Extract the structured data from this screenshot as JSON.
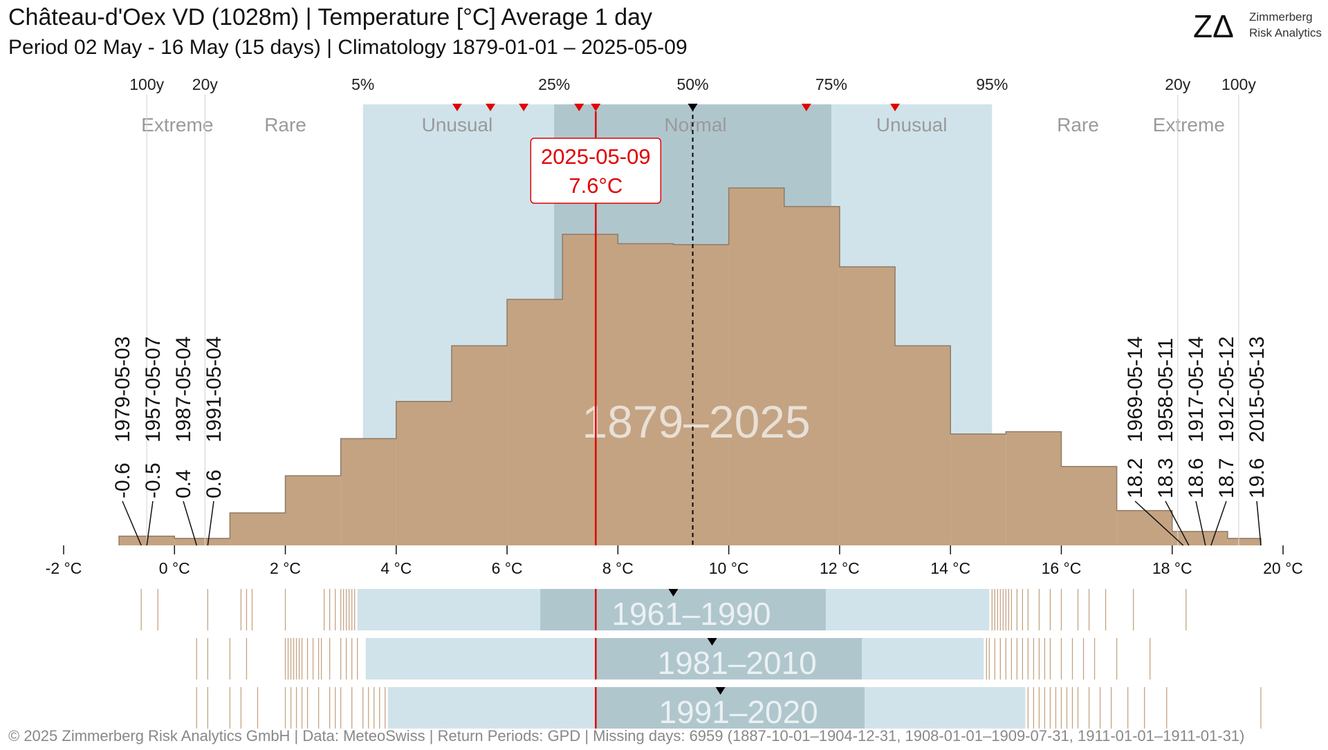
{
  "header": {
    "title": "Château-d'Oex  VD (1028m) | Temperature [°C] Average 1 day",
    "subtitle": "Period 02 May - 16 May (15 days) | Climatology 1879-01-01 – 2025-05-09"
  },
  "logo": {
    "mark": "ZΔ",
    "line1": "Zimmerberg",
    "line2": "Risk Analytics"
  },
  "footer": "©  2025 Zimmerberg Risk Analytics GmbH | Data: MeteoSwiss | Return Periods: GPD | Missing days: 6959 (1887-10-01–1904-12-31, 1908-01-01–1909-07-31, 1911-01-01–1911-01-31)",
  "colors": {
    "histogram": "#c4a382",
    "histogram_edge": "#8f7a64",
    "band_outer": "#d0e3ea",
    "band_inner": "#b0c6cd",
    "highlight": "#e00000",
    "median": "#000000",
    "category_text": "#9a9a9a",
    "period_text": "#e8e0d6"
  },
  "chart_data": {
    "type": "histogram",
    "xlabel": "",
    "ylabel": "",
    "xlim": [
      -2,
      20
    ],
    "x_tick_labels": [
      "-2 °C",
      "0 °C",
      "2 °C",
      "4 °C",
      "6 °C",
      "8 °C",
      "10 °C",
      "12 °C",
      "14 °C",
      "16 °C",
      "18 °C",
      "20 °C"
    ],
    "x_ticks": [
      -2,
      0,
      2,
      4,
      6,
      8,
      10,
      12,
      14,
      16,
      18,
      20
    ],
    "bins": [
      {
        "from": -1,
        "to": 0,
        "count": 2
      },
      {
        "from": 0,
        "to": 1,
        "count": 1.5
      },
      {
        "from": 1,
        "to": 2,
        "count": 7
      },
      {
        "from": 2,
        "to": 3,
        "count": 15
      },
      {
        "from": 3,
        "to": 4,
        "count": 23
      },
      {
        "from": 4,
        "to": 5,
        "count": 31
      },
      {
        "from": 5,
        "to": 6,
        "count": 43
      },
      {
        "from": 6,
        "to": 7,
        "count": 53
      },
      {
        "from": 7,
        "to": 8,
        "count": 67
      },
      {
        "from": 8,
        "to": 9,
        "count": 65
      },
      {
        "from": 9,
        "to": 10,
        "count": 64.8
      },
      {
        "from": 10,
        "to": 11,
        "count": 77
      },
      {
        "from": 11,
        "to": 12,
        "count": 73
      },
      {
        "from": 12,
        "to": 13,
        "count": 60
      },
      {
        "from": 13,
        "to": 14,
        "count": 43
      },
      {
        "from": 14,
        "to": 15,
        "count": 24
      },
      {
        "from": 15,
        "to": 16,
        "count": 24.5
      },
      {
        "from": 16,
        "to": 17,
        "count": 17
      },
      {
        "from": 17,
        "to": 18,
        "count": 7.5
      },
      {
        "from": 18,
        "to": 19,
        "count": 3
      },
      {
        "from": 19,
        "to": 19.6,
        "count": 1.5
      }
    ],
    "ylim": [
      0,
      95
    ],
    "percentiles": [
      {
        "label": "5%",
        "value": 3.4
      },
      {
        "label": "25%",
        "value": 6.85
      },
      {
        "label": "50%",
        "value": 9.35
      },
      {
        "label": "75%",
        "value": 11.85
      },
      {
        "label": "95%",
        "value": 14.75
      }
    ],
    "return_periods": [
      {
        "label": "100y",
        "value": -0.5
      },
      {
        "label": "20y",
        "value": 0.55
      },
      {
        "label": "20y",
        "value": 18.1
      },
      {
        "label": "100y",
        "value": 19.2
      }
    ],
    "categories": [
      {
        "label": "Extreme",
        "value": 0.05
      },
      {
        "label": "Rare",
        "value": 2.0
      },
      {
        "label": "Unusual",
        "value": 5.1
      },
      {
        "label": "Normal",
        "value": 9.4
      },
      {
        "label": "Unusual",
        "value": 13.3
      },
      {
        "label": "Rare",
        "value": 16.3
      },
      {
        "label": "Extreme",
        "value": 18.3
      }
    ],
    "period_label": "1879–2025",
    "recent_markers": [
      5.1,
      5.7,
      6.3,
      7.3,
      7.6,
      11.4,
      13.0
    ],
    "highlight": {
      "date": "2025-05-09",
      "value": 7.6,
      "label": "7.6°C"
    },
    "median_marker": 9.35,
    "extremes_low": [
      {
        "date": "1979-05-03",
        "value": -0.6,
        "label": "-0.6"
      },
      {
        "date": "1957-05-07",
        "value": -0.5,
        "label": "-0.5"
      },
      {
        "date": "1987-05-04",
        "value": 0.4,
        "label": "0.4"
      },
      {
        "date": "1991-05-04",
        "value": 0.6,
        "label": "0.6"
      }
    ],
    "extremes_high": [
      {
        "date": "1969-05-14",
        "value": 18.2,
        "label": "18.2"
      },
      {
        "date": "1958-05-11",
        "value": 18.3,
        "label": "18.3"
      },
      {
        "date": "1917-05-14",
        "value": 18.6,
        "label": "18.6"
      },
      {
        "date": "1912-05-12",
        "value": 18.7,
        "label": "18.7"
      },
      {
        "date": "2015-05-13",
        "value": 19.6,
        "label": "19.6"
      }
    ],
    "normal_periods": [
      {
        "label": "1961–1990",
        "p5": 3.3,
        "p25": 6.6,
        "p50": 9.0,
        "p75": 11.75,
        "p95": 14.7,
        "low_values": [
          -0.6,
          -0.3,
          0.6,
          1.2,
          1.3,
          1.4,
          2.0,
          2.7,
          2.8,
          2.9,
          3.0,
          3.05,
          3.1,
          3.15,
          3.2,
          3.25
        ],
        "high_values": [
          14.75,
          14.8,
          14.85,
          14.9,
          14.95,
          15.0,
          15.05,
          15.1,
          15.2,
          15.3,
          15.4,
          15.6,
          15.8,
          16.0,
          16.3,
          16.5,
          16.8,
          17.3,
          18.25
        ]
      },
      {
        "label": "1981–2010",
        "p5": 3.45,
        "p25": 7.6,
        "p50": 9.7,
        "p75": 12.4,
        "p95": 14.6,
        "low_values": [
          0.4,
          0.6,
          1.0,
          1.3,
          2.0,
          2.05,
          2.1,
          2.15,
          2.2,
          2.25,
          2.3,
          2.4,
          2.5,
          2.6,
          2.65,
          2.8,
          3.0,
          3.1,
          3.2,
          3.3
        ],
        "high_values": [
          14.65,
          14.7,
          14.8,
          14.9,
          15.0,
          15.1,
          15.2,
          15.3,
          15.4,
          15.5,
          15.6,
          15.7,
          15.8,
          16.0,
          16.2,
          16.4,
          16.6,
          17.0,
          17.6
        ]
      },
      {
        "label": "1991–2020",
        "p5": 3.85,
        "p25": 7.6,
        "p50": 9.85,
        "p75": 12.45,
        "p95": 15.35,
        "low_values": [
          0.4,
          0.6,
          1.0,
          1.2,
          1.5,
          2.0,
          2.1,
          2.2,
          2.3,
          2.4,
          2.6,
          2.8,
          2.9,
          3.0,
          3.2,
          3.4,
          3.5,
          3.6,
          3.7,
          3.8
        ],
        "high_values": [
          15.4,
          15.5,
          15.6,
          15.7,
          15.8,
          15.9,
          16.0,
          16.1,
          16.2,
          16.3,
          16.5,
          16.7,
          16.9,
          17.2,
          17.5,
          17.9,
          19.6
        ]
      }
    ]
  }
}
